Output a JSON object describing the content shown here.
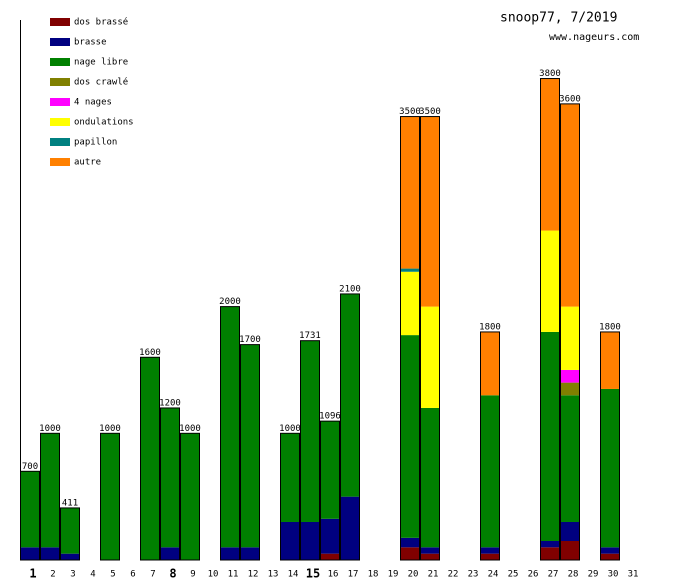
{
  "chart_data": {
    "type": "stacked-bar",
    "title": "snoop77, 7/2019",
    "subtitle": "www.nageurs.com",
    "categories": [
      "1",
      "2",
      "3",
      "4",
      "5",
      "6",
      "7",
      "8",
      "9",
      "10",
      "11",
      "12",
      "13",
      "14",
      "15",
      "16",
      "17",
      "18",
      "19",
      "20",
      "21",
      "22",
      "23",
      "24",
      "25",
      "26",
      "27",
      "28",
      "29",
      "30",
      "31"
    ],
    "bold_categories": [
      "1",
      "8",
      "15"
    ],
    "totals": [
      700,
      1000,
      411,
      null,
      1000,
      null,
      1600,
      1200,
      1000,
      null,
      2000,
      1700,
      null,
      1000,
      1731,
      1096,
      2100,
      null,
      null,
      3500,
      3500,
      null,
      null,
      1800,
      null,
      null,
      3800,
      3600,
      null,
      1800,
      null
    ],
    "series": [
      {
        "name": "dos brassé",
        "color": "#800000",
        "values": [
          null,
          null,
          null,
          null,
          null,
          null,
          null,
          null,
          null,
          null,
          null,
          null,
          null,
          null,
          null,
          50,
          null,
          null,
          null,
          100,
          50,
          null,
          null,
          50,
          null,
          null,
          100,
          150,
          null,
          50,
          null
        ]
      },
      {
        "name": "brasse",
        "color": "#000080",
        "values": [
          100,
          100,
          50,
          null,
          null,
          null,
          null,
          100,
          null,
          null,
          100,
          100,
          null,
          300,
          300,
          275,
          500,
          null,
          null,
          75,
          50,
          null,
          null,
          50,
          null,
          null,
          50,
          150,
          null,
          50,
          null
        ]
      },
      {
        "name": "nage libre",
        "color": "#008000",
        "values": [
          600,
          900,
          361,
          null,
          1000,
          null,
          1600,
          1100,
          1000,
          null,
          1900,
          1600,
          null,
          700,
          1431,
          771,
          1600,
          null,
          null,
          1600,
          1100,
          null,
          null,
          1200,
          null,
          null,
          1650,
          1000,
          null,
          1250,
          null
        ]
      },
      {
        "name": "dos crawlé",
        "color": "#808000",
        "values": [
          null,
          null,
          null,
          null,
          null,
          null,
          null,
          null,
          null,
          null,
          null,
          null,
          null,
          null,
          null,
          null,
          null,
          null,
          null,
          null,
          null,
          null,
          null,
          null,
          null,
          null,
          null,
          100,
          null,
          null,
          null
        ]
      },
      {
        "name": "4 nages",
        "color": "#ff00ff",
        "values": [
          null,
          null,
          null,
          null,
          null,
          null,
          null,
          null,
          null,
          null,
          null,
          null,
          null,
          null,
          null,
          null,
          null,
          null,
          null,
          null,
          null,
          null,
          null,
          null,
          null,
          null,
          null,
          100,
          null,
          null,
          null
        ]
      },
      {
        "name": "ondulations",
        "color": "#ffff00",
        "values": [
          null,
          null,
          null,
          null,
          null,
          null,
          null,
          null,
          null,
          null,
          null,
          null,
          null,
          null,
          null,
          null,
          null,
          null,
          null,
          500,
          800,
          null,
          null,
          null,
          null,
          null,
          800,
          500,
          null,
          null,
          null
        ]
      },
      {
        "name": "papillon",
        "color": "#008080",
        "values": [
          null,
          null,
          null,
          null,
          null,
          null,
          null,
          null,
          null,
          null,
          null,
          null,
          null,
          null,
          null,
          null,
          null,
          null,
          null,
          25,
          null,
          null,
          null,
          null,
          null,
          null,
          null,
          null,
          null,
          null,
          null
        ]
      },
      {
        "name": "autre",
        "color": "#ff8000",
        "values": [
          null,
          null,
          null,
          null,
          null,
          null,
          null,
          null,
          null,
          null,
          null,
          null,
          null,
          null,
          null,
          null,
          null,
          null,
          null,
          1200,
          1500,
          null,
          null,
          500,
          null,
          null,
          1200,
          1600,
          null,
          450,
          null
        ]
      }
    ]
  }
}
